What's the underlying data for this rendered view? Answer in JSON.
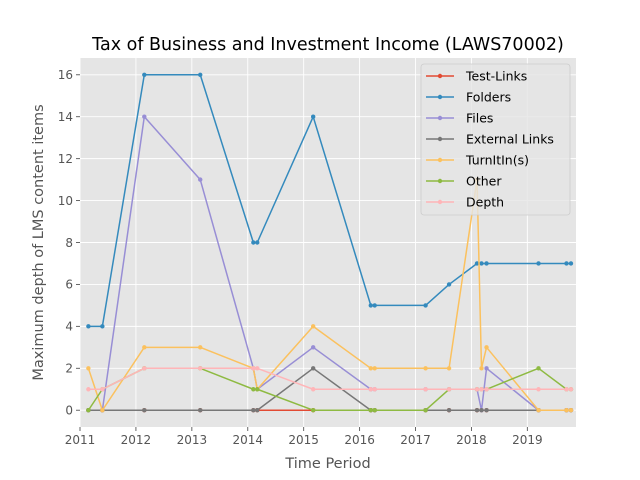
{
  "chart_data": {
    "type": "line",
    "title": "Tax of Business and Investment Income (LAWS70002)",
    "xlabel": "Time Period",
    "ylabel": "Maximum depth of LMS content items",
    "xlim": [
      2011.0,
      2019.87
    ],
    "ylim": [
      -0.8,
      16.8
    ],
    "x_ticks": [
      2011,
      2012,
      2013,
      2014,
      2015,
      2016,
      2017,
      2018,
      2019
    ],
    "y_ticks": [
      0,
      2,
      4,
      6,
      8,
      10,
      12,
      14,
      16
    ],
    "grid": true,
    "legend_position": "top-right",
    "x": [
      2011.15,
      2011.4,
      2012.15,
      2013.15,
      2014.1,
      2014.17,
      2015.17,
      2016.2,
      2016.27,
      2017.18,
      2017.6,
      2018.1,
      2018.18,
      2018.27,
      2019.2,
      2019.7,
      2019.78
    ],
    "series": [
      {
        "name": "Test-Links",
        "color": "#e24a33",
        "values": [
          0,
          0,
          0,
          0,
          0,
          0,
          0,
          0,
          0,
          0,
          0,
          0,
          0,
          0,
          0,
          0,
          0
        ]
      },
      {
        "name": "Folders",
        "color": "#348abd",
        "values": [
          4,
          4,
          16,
          16,
          8,
          8,
          14,
          5,
          5,
          5,
          6,
          7,
          7,
          7,
          7,
          7,
          7
        ]
      },
      {
        "name": "Files",
        "color": "#988ed5",
        "values": [
          0,
          0,
          14,
          11,
          2,
          1,
          3,
          1,
          1,
          1,
          1,
          1,
          0,
          2,
          0,
          0,
          0
        ]
      },
      {
        "name": "External Links",
        "color": "#777777",
        "values": [
          0,
          0,
          0,
          0,
          0,
          0,
          2,
          0,
          0,
          0,
          0,
          0,
          0,
          0,
          0,
          0,
          0
        ]
      },
      {
        "name": "TurnItIn(s)",
        "color": "#fbc15e",
        "values": [
          2,
          0,
          3,
          3,
          2,
          1,
          4,
          2,
          2,
          2,
          2,
          11,
          2,
          3,
          0,
          0,
          0
        ]
      },
      {
        "name": "Other",
        "color": "#8eba42",
        "values": [
          0,
          1,
          2,
          2,
          1,
          1,
          0,
          0,
          0,
          0,
          1,
          1,
          1,
          1,
          2,
          1,
          1
        ]
      },
      {
        "name": "Depth",
        "color": "#ffb5b8",
        "values": [
          1,
          1,
          2,
          2,
          2,
          2,
          1,
          1,
          1,
          1,
          1,
          1,
          1,
          1,
          1,
          1,
          1
        ]
      }
    ]
  }
}
